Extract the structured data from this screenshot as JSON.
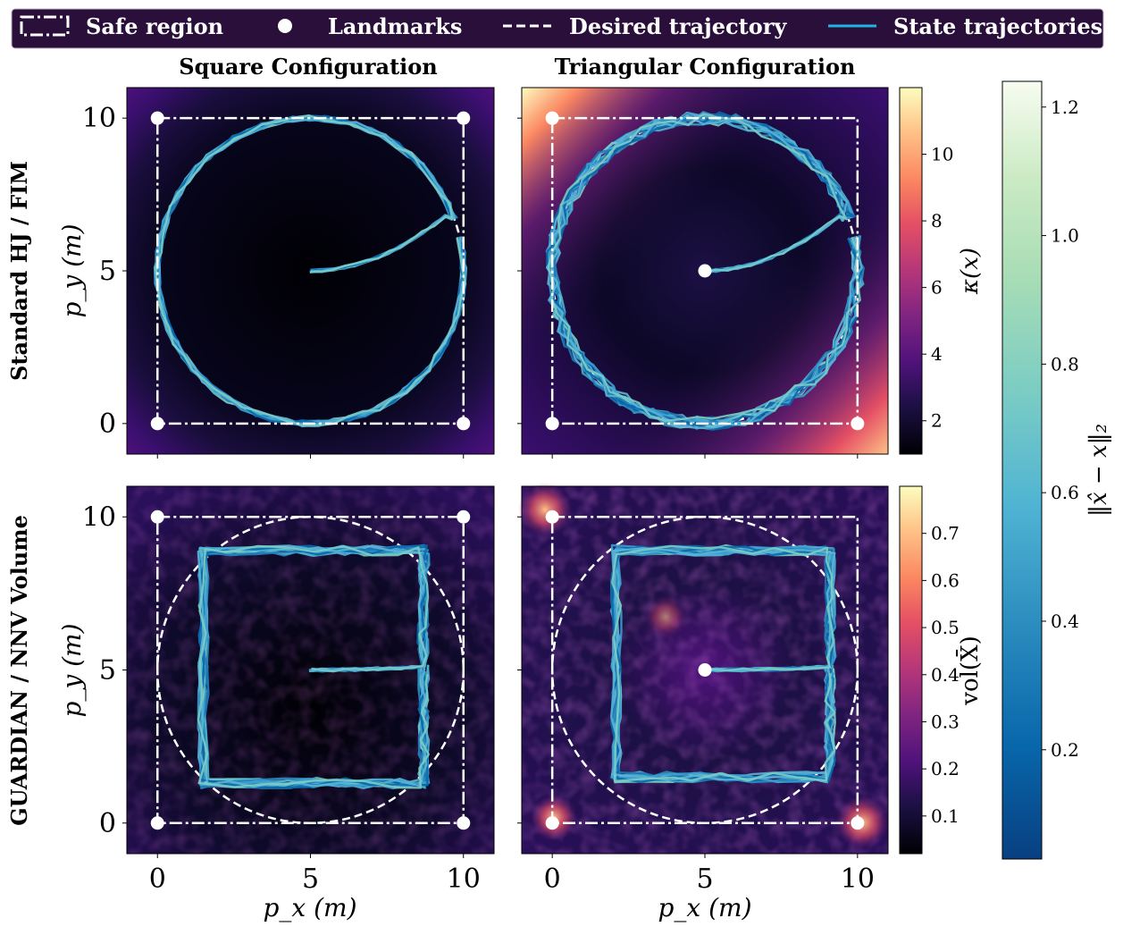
{
  "legend": {
    "items": [
      {
        "label": "Safe region",
        "icon": "safe-region-icon"
      },
      {
        "label": "Landmarks",
        "icon": "landmark-marker-icon"
      },
      {
        "label": "Desired trajectory",
        "icon": "dashed-line-icon"
      },
      {
        "label": "State trajectories",
        "icon": "solid-line-icon"
      }
    ],
    "background": "#2a0f3b"
  },
  "columns": [
    "Square Configuration",
    "Triangular Configuration"
  ],
  "rows": [
    "Standard HJ / FIM",
    "GUARDIAN / NNV Volume"
  ],
  "axes": {
    "xlabel": "p_x (m)",
    "ylabel": "p_y (m)",
    "xticks": [
      "0",
      "5",
      "10"
    ],
    "yticks": [
      "0",
      "5",
      "10"
    ],
    "xlim": [
      -1,
      11
    ],
    "ylim": [
      -1,
      11
    ]
  },
  "colorbars": {
    "kappa": {
      "label": "κ(x)",
      "ticks": [
        "2",
        "4",
        "6",
        "8",
        "10"
      ],
      "range": [
        1,
        12
      ],
      "colormap": "magma"
    },
    "vol": {
      "label": "vol(X̄)",
      "ticks": [
        "0.1",
        "0.2",
        "0.3",
        "0.4",
        "0.5",
        "0.6",
        "0.7"
      ],
      "range": [
        0.02,
        0.8
      ],
      "colormap": "magma"
    },
    "err": {
      "label": "‖x̂ − x‖₂",
      "ticks": [
        "0.2",
        "0.4",
        "0.6",
        "0.8",
        "1.0",
        "1.2"
      ],
      "range": [
        0.03,
        1.24
      ],
      "colormap": "GnBu_r"
    }
  },
  "chart_data": [
    {
      "type": "heatmap",
      "title": "Square Configuration",
      "row_label": "Standard HJ / FIM",
      "landmarks": [
        [
          0,
          0
        ],
        [
          10,
          0
        ],
        [
          0,
          10
        ],
        [
          10,
          10
        ]
      ],
      "safe_region": {
        "x": [
          0,
          10
        ],
        "y": [
          0,
          10
        ]
      },
      "desired_trajectory": {
        "center": [
          5,
          5
        ],
        "radius": 5
      },
      "trajectory_shape": "circle",
      "start": [
        5,
        5
      ]
    },
    {
      "type": "heatmap",
      "title": "Triangular Configuration",
      "row_label": "Standard HJ / FIM",
      "landmarks": [
        [
          0,
          0
        ],
        [
          10,
          0
        ],
        [
          0,
          10
        ],
        [
          5,
          5
        ]
      ],
      "safe_region": {
        "x": [
          0,
          10
        ],
        "y": [
          0,
          10
        ]
      },
      "desired_trajectory": {
        "center": [
          5,
          5
        ],
        "radius": 5
      },
      "trajectory_shape": "circle",
      "start": [
        5,
        5
      ]
    },
    {
      "type": "heatmap",
      "title": "Square Configuration",
      "row_label": "GUARDIAN / NNV Volume",
      "landmarks": [
        [
          0,
          0
        ],
        [
          10,
          0
        ],
        [
          0,
          10
        ],
        [
          10,
          10
        ]
      ],
      "safe_region": {
        "x": [
          0,
          10
        ],
        "y": [
          0,
          10
        ]
      },
      "desired_trajectory": {
        "center": [
          5,
          5
        ],
        "radius": 5
      },
      "trajectory_shape": "square",
      "square_path": {
        "x": [
          1.5,
          8.7
        ],
        "y": [
          1.3,
          8.9
        ]
      },
      "start": [
        5,
        5
      ]
    },
    {
      "type": "heatmap",
      "title": "Triangular Configuration",
      "row_label": "GUARDIAN / NNV Volume",
      "landmarks": [
        [
          0,
          0
        ],
        [
          10,
          0
        ],
        [
          0,
          10
        ],
        [
          5,
          5
        ]
      ],
      "safe_region": {
        "x": [
          0,
          10
        ],
        "y": [
          0,
          10
        ]
      },
      "desired_trajectory": {
        "center": [
          5,
          5
        ],
        "radius": 5
      },
      "trajectory_shape": "square",
      "square_path": {
        "x": [
          2.1,
          9.1
        ],
        "y": [
          1.5,
          8.9
        ]
      },
      "start": [
        5,
        5
      ]
    }
  ]
}
